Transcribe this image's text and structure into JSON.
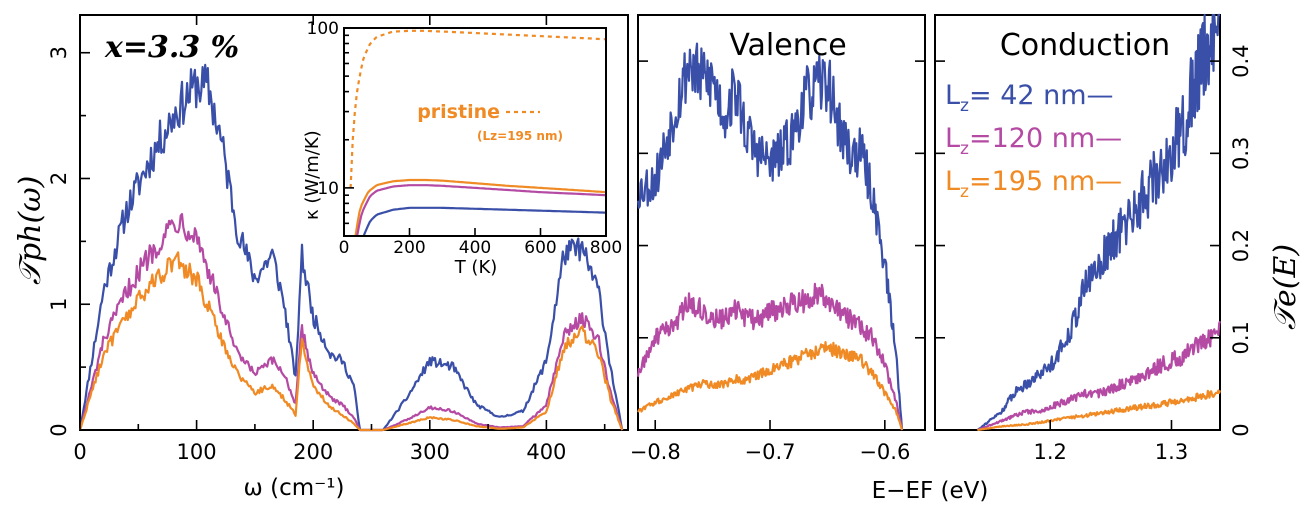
{
  "colors": {
    "blue": "#3a4fa8",
    "magenta": "#b44aa3",
    "orange": "#f08a24"
  },
  "chart_data": [
    {
      "id": "phonon",
      "type": "line",
      "title": "",
      "xlabel": "ω (cm⁻¹)",
      "ylabel": "𝒯ph(ω)",
      "xlim": [
        0,
        470
      ],
      "ylim": [
        0,
        3.3
      ],
      "xticks": [
        "0",
        "100",
        "200",
        "300",
        "400"
      ],
      "yticks": [
        "0",
        "1",
        "2",
        "3"
      ],
      "annotation": "x=3.3 %",
      "series": [
        {
          "name": "Lz= 42 nm",
          "color": "blue",
          "x": [
            0,
            20,
            40,
            60,
            80,
            100,
            110,
            120,
            135,
            150,
            165,
            175,
            185,
            190,
            200,
            215,
            225,
            235,
            240,
            260,
            280,
            300,
            320,
            340,
            360,
            380,
            400,
            415,
            430,
            445,
            455,
            465
          ],
          "y": [
            0,
            1.1,
            1.75,
            2.15,
            2.5,
            2.75,
            2.72,
            2.35,
            1.6,
            1.2,
            1.4,
            1.0,
            0.4,
            1.4,
            0.9,
            0.6,
            0.55,
            0.35,
            0,
            0,
            0.25,
            0.55,
            0.5,
            0.2,
            0.1,
            0.15,
            0.55,
            1.4,
            1.45,
            1.1,
            0.5,
            0
          ]
        },
        {
          "name": "Lz=120 nm",
          "color": "magenta",
          "x": [
            0,
            20,
            40,
            60,
            80,
            85,
            100,
            120,
            135,
            150,
            165,
            175,
            185,
            190,
            200,
            215,
            225,
            235,
            240,
            260,
            280,
            300,
            320,
            340,
            360,
            380,
            400,
            415,
            430,
            445,
            455,
            465
          ],
          "y": [
            0,
            0.7,
            1.1,
            1.4,
            1.65,
            1.68,
            1.55,
            1.0,
            0.6,
            0.45,
            0.55,
            0.45,
            0.2,
            0.8,
            0.45,
            0.25,
            0.2,
            0.1,
            0,
            0,
            0.08,
            0.18,
            0.15,
            0.05,
            0.02,
            0.03,
            0.2,
            0.75,
            0.9,
            0.7,
            0.3,
            0
          ]
        },
        {
          "name": "Lz=195 nm",
          "color": "orange",
          "x": [
            0,
            20,
            40,
            60,
            80,
            85,
            100,
            120,
            135,
            150,
            165,
            175,
            185,
            190,
            200,
            215,
            225,
            235,
            240,
            260,
            280,
            300,
            320,
            340,
            360,
            380,
            400,
            415,
            430,
            445,
            455,
            465
          ],
          "y": [
            0,
            0.6,
            0.9,
            1.15,
            1.35,
            1.32,
            1.2,
            0.75,
            0.45,
            0.3,
            0.35,
            0.25,
            0.12,
            0.7,
            0.35,
            0.18,
            0.12,
            0.05,
            0,
            0,
            0.05,
            0.1,
            0.08,
            0.03,
            0.01,
            0.02,
            0.15,
            0.65,
            0.8,
            0.6,
            0.25,
            0
          ]
        }
      ]
    },
    {
      "id": "kappa-inset",
      "type": "line",
      "title": "",
      "xlabel": "T (K)",
      "ylabel": "κ (W/m/K)",
      "scale_y": "log",
      "xlim": [
        0,
        800
      ],
      "ylim": [
        5,
        100
      ],
      "xticks": [
        "0",
        "200",
        "400",
        "600",
        "800"
      ],
      "yticks": [
        "10",
        "100"
      ],
      "pristine_label": "pristine",
      "pristine_sub": "(Lz=195 nm)",
      "series": [
        {
          "name": "pristine",
          "color": "orange",
          "dashed": true,
          "x": [
            20,
            40,
            60,
            80,
            100,
            150,
            200,
            250,
            300,
            400,
            500,
            600,
            700,
            800
          ],
          "y": [
            10,
            40,
            65,
            80,
            88,
            95,
            96,
            96,
            95,
            93,
            91,
            89,
            87,
            85
          ]
        },
        {
          "name": "Lz=195 nm",
          "color": "orange",
          "dashed": false,
          "x": [
            35,
            50,
            75,
            100,
            150,
            200,
            250,
            300,
            400,
            500,
            600,
            700,
            800
          ],
          "y": [
            5,
            7.5,
            9.5,
            10.4,
            11.0,
            11.2,
            11.2,
            11.1,
            10.7,
            10.3,
            10.0,
            9.7,
            9.4
          ]
        },
        {
          "name": "Lz=120 nm",
          "color": "magenta",
          "dashed": false,
          "x": [
            40,
            55,
            80,
            100,
            150,
            200,
            250,
            300,
            400,
            500,
            600,
            700,
            800
          ],
          "y": [
            5,
            7.0,
            8.9,
            9.6,
            10.2,
            10.4,
            10.4,
            10.3,
            10.0,
            9.7,
            9.4,
            9.2,
            9.0
          ]
        },
        {
          "name": "Lz= 42 nm",
          "color": "blue",
          "dashed": false,
          "x": [
            60,
            80,
            100,
            150,
            200,
            250,
            300,
            400,
            500,
            600,
            700,
            800
          ],
          "y": [
            5,
            6.2,
            6.8,
            7.3,
            7.5,
            7.5,
            7.5,
            7.4,
            7.3,
            7.2,
            7.1,
            7.0
          ]
        }
      ]
    },
    {
      "id": "valence",
      "type": "line",
      "title": "Valence",
      "xlabel": "E−EF (eV)",
      "ylabel": "",
      "xlim": [
        -0.815,
        -0.565
      ],
      "ylim": [
        0,
        0.45
      ],
      "xticks": [
        "−0.8",
        "−0.7",
        "−0.6"
      ],
      "series": [
        {
          "name": "Lz= 42 nm",
          "color": "blue",
          "x": [
            -0.815,
            -0.8,
            -0.78,
            -0.77,
            -0.76,
            -0.75,
            -0.74,
            -0.73,
            -0.72,
            -0.71,
            -0.7,
            -0.69,
            -0.68,
            -0.67,
            -0.66,
            -0.65,
            -0.64,
            -0.63,
            -0.62,
            -0.61,
            -0.6,
            -0.59,
            -0.585
          ],
          "y": [
            0.26,
            0.27,
            0.36,
            0.4,
            0.38,
            0.38,
            0.34,
            0.37,
            0.32,
            0.3,
            0.29,
            0.3,
            0.32,
            0.36,
            0.37,
            0.38,
            0.33,
            0.3,
            0.3,
            0.25,
            0.18,
            0.08,
            0
          ]
        },
        {
          "name": "Lz=120 nm",
          "color": "magenta",
          "x": [
            -0.815,
            -0.8,
            -0.78,
            -0.77,
            -0.76,
            -0.75,
            -0.74,
            -0.73,
            -0.72,
            -0.71,
            -0.7,
            -0.69,
            -0.68,
            -0.67,
            -0.66,
            -0.65,
            -0.64,
            -0.63,
            -0.62,
            -0.61,
            -0.6,
            -0.59,
            -0.585
          ],
          "y": [
            0.06,
            0.1,
            0.12,
            0.14,
            0.13,
            0.12,
            0.12,
            0.13,
            0.12,
            0.12,
            0.13,
            0.13,
            0.14,
            0.14,
            0.15,
            0.14,
            0.13,
            0.12,
            0.11,
            0.1,
            0.07,
            0.03,
            0
          ]
        },
        {
          "name": "Lz=195 nm",
          "color": "orange",
          "x": [
            -0.815,
            -0.8,
            -0.78,
            -0.77,
            -0.76,
            -0.75,
            -0.74,
            -0.73,
            -0.72,
            -0.71,
            -0.7,
            -0.69,
            -0.68,
            -0.67,
            -0.66,
            -0.65,
            -0.64,
            -0.63,
            -0.62,
            -0.61,
            -0.6,
            -0.59,
            -0.585
          ],
          "y": [
            0.02,
            0.03,
            0.04,
            0.045,
            0.05,
            0.05,
            0.05,
            0.055,
            0.055,
            0.06,
            0.065,
            0.07,
            0.075,
            0.08,
            0.085,
            0.09,
            0.085,
            0.08,
            0.075,
            0.06,
            0.04,
            0.02,
            0
          ]
        }
      ]
    },
    {
      "id": "conduction",
      "type": "line",
      "title": "Conduction",
      "xlabel": "",
      "ylabel": "𝒯e(E)",
      "xlim": [
        1.105,
        1.34
      ],
      "ylim": [
        0,
        0.45
      ],
      "xticks": [
        "1.2",
        "1.3"
      ],
      "yticks": [
        "0",
        "0.1",
        "0.2",
        "0.3",
        "0.4"
      ],
      "series": [
        {
          "name": "Lz= 42 nm",
          "color": "blue",
          "x": [
            1.14,
            1.15,
            1.16,
            1.17,
            1.18,
            1.19,
            1.2,
            1.21,
            1.22,
            1.23,
            1.24,
            1.25,
            1.26,
            1.27,
            1.28,
            1.29,
            1.3,
            1.31,
            1.32,
            1.33,
            1.34
          ],
          "y": [
            0,
            0.01,
            0.02,
            0.04,
            0.05,
            0.06,
            0.07,
            0.09,
            0.12,
            0.16,
            0.18,
            0.2,
            0.22,
            0.24,
            0.26,
            0.28,
            0.3,
            0.33,
            0.38,
            0.42,
            0.46
          ]
        },
        {
          "name": "Lz=120 nm",
          "color": "magenta",
          "x": [
            1.14,
            1.15,
            1.16,
            1.17,
            1.18,
            1.19,
            1.2,
            1.21,
            1.22,
            1.23,
            1.24,
            1.25,
            1.26,
            1.27,
            1.28,
            1.29,
            1.3,
            1.31,
            1.32,
            1.33,
            1.34
          ],
          "y": [
            0,
            0.005,
            0.01,
            0.015,
            0.02,
            0.02,
            0.025,
            0.03,
            0.035,
            0.04,
            0.04,
            0.045,
            0.05,
            0.055,
            0.06,
            0.07,
            0.075,
            0.08,
            0.09,
            0.1,
            0.11
          ]
        },
        {
          "name": "Lz=195 nm",
          "color": "orange",
          "x": [
            1.14,
            1.15,
            1.16,
            1.17,
            1.18,
            1.19,
            1.2,
            1.21,
            1.22,
            1.23,
            1.24,
            1.25,
            1.26,
            1.27,
            1.28,
            1.29,
            1.3,
            1.31,
            1.32,
            1.33,
            1.34
          ],
          "y": [
            0,
            0.002,
            0.004,
            0.005,
            0.006,
            0.008,
            0.01,
            0.012,
            0.014,
            0.016,
            0.018,
            0.02,
            0.022,
            0.024,
            0.026,
            0.028,
            0.03,
            0.032,
            0.035,
            0.038,
            0.04
          ]
        }
      ]
    }
  ],
  "legend": [
    {
      "prefix": "L",
      "sub": "z",
      "value": "= 42 nm—",
      "color": "blue"
    },
    {
      "prefix": "L",
      "sub": "z",
      "value": "=120 nm—",
      "color": "magenta"
    },
    {
      "prefix": "L",
      "sub": "z",
      "value": "=195 nm—",
      "color": "orange"
    }
  ]
}
